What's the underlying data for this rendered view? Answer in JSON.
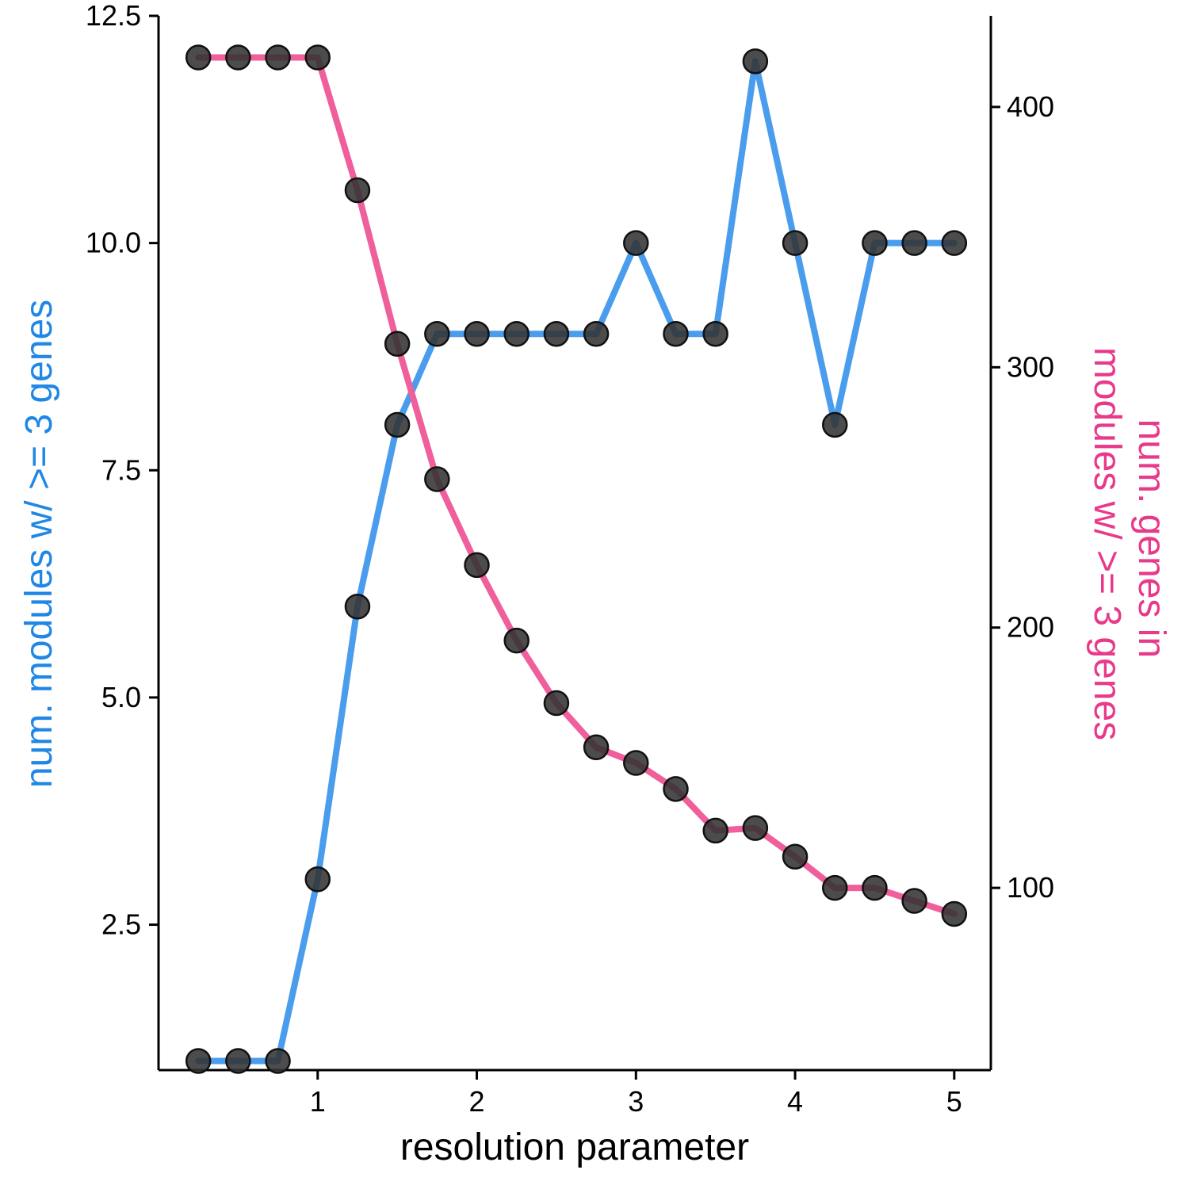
{
  "chart_data": {
    "type": "line",
    "xlabel": "resolution parameter",
    "ylabel": "num. modules w/ >= 3 genes",
    "y2label_lines": [
      "num. genes in",
      "modules w/ >= 3 genes"
    ],
    "xlim": [
      0.0,
      5.23
    ],
    "ylim": [
      0.9,
      12.5
    ],
    "y2lim": [
      30,
      435
    ],
    "x_ticks": [
      "1",
      "2",
      "3",
      "4",
      "5"
    ],
    "y_ticks": [
      "2.5",
      "5.0",
      "7.5",
      "10.0",
      "12.5"
    ],
    "y2_ticks": [
      "100",
      "200",
      "300",
      "400"
    ],
    "x": [
      0.25,
      0.5,
      0.75,
      1.0,
      1.25,
      1.5,
      1.75,
      2.0,
      2.25,
      2.5,
      2.75,
      3.0,
      3.25,
      3.5,
      3.75,
      4.0,
      4.25,
      4.5,
      4.75,
      5.0
    ],
    "series": [
      {
        "axis": "left",
        "color": "#4a9ded",
        "values": [
          1,
          1,
          1,
          3,
          6,
          8,
          9,
          9,
          9,
          9,
          9,
          10,
          9,
          9,
          12,
          10,
          8,
          10,
          10,
          10
        ]
      },
      {
        "axis": "right",
        "color": "#ef5f9b",
        "values": [
          419,
          419,
          419,
          419,
          368,
          309,
          257,
          224,
          195,
          171,
          154,
          148,
          138,
          122,
          123,
          112,
          100,
          100,
          95,
          90
        ]
      }
    ],
    "marker_color": "#333333",
    "left_axis_title_color": "#1f87e5",
    "right_axis_title_color": "#e8398a",
    "grid": false,
    "legend": "none"
  }
}
